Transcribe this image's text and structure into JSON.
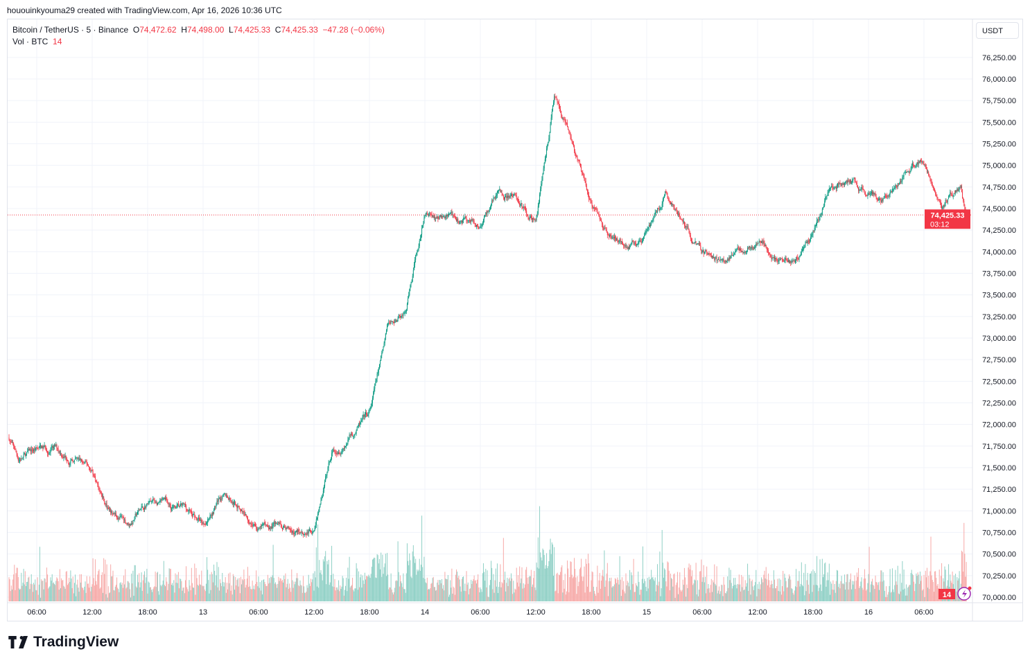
{
  "credit": "hououinkyouma29 created with TradingView.com, Apr 16, 2026 10:36 UTC",
  "legend": {
    "symbol": "Bitcoin / TetherUS · 5 · Binance",
    "o_label": "O",
    "o": "74,472.62",
    "h_label": "H",
    "h": "74,498.00",
    "l_label": "L",
    "l": "74,425.33",
    "c_label": "C",
    "c": "74,425.33",
    "change": "−47.28 (−0.06%)",
    "vol_label": "Vol · BTC",
    "vol": "14"
  },
  "currency_button": "USDT",
  "last_price_label": "74,425.33",
  "countdown": "03:12",
  "volume_badge": "14",
  "brand": "TradingView",
  "colors": {
    "up": "#089981",
    "down": "#f23645",
    "up_volume": "#8fd0c5",
    "down_volume": "#f7a9a7"
  },
  "chart_data": {
    "type": "candlestick",
    "interval": "5m",
    "ylim": [
      70000,
      76250
    ],
    "grid": true,
    "y_ticks": [
      "70,000.00",
      "70,250.00",
      "70,500.00",
      "70,750.00",
      "71,000.00",
      "71,250.00",
      "71,500.00",
      "71,750.00",
      "72,000.00",
      "72,250.00",
      "72,500.00",
      "72,750.00",
      "73,000.00",
      "73,250.00",
      "73,500.00",
      "73,750.00",
      "74,000.00",
      "74,250.00",
      "74,500.00",
      "74,750.00",
      "75,000.00",
      "75,250.00",
      "75,500.00",
      "75,750.00",
      "76,000.00",
      "76,250.00"
    ],
    "x_ticks": [
      {
        "t": "2026-04-12 06:00",
        "label": "06:00"
      },
      {
        "t": "2026-04-12 12:00",
        "label": "12:00"
      },
      {
        "t": "2026-04-12 18:00",
        "label": "18:00"
      },
      {
        "t": "2026-04-13 00:00",
        "label": "13"
      },
      {
        "t": "2026-04-13 06:00",
        "label": "06:00"
      },
      {
        "t": "2026-04-13 12:00",
        "label": "12:00"
      },
      {
        "t": "2026-04-13 18:00",
        "label": "18:00"
      },
      {
        "t": "2026-04-14 00:00",
        "label": "14"
      },
      {
        "t": "2026-04-14 06:00",
        "label": "06:00"
      },
      {
        "t": "2026-04-14 12:00",
        "label": "12:00"
      },
      {
        "t": "2026-04-14 18:00",
        "label": "18:00"
      },
      {
        "t": "2026-04-15 00:00",
        "label": "15"
      },
      {
        "t": "2026-04-15 06:00",
        "label": "06:00"
      },
      {
        "t": "2026-04-15 12:00",
        "label": "12:00"
      },
      {
        "t": "2026-04-15 18:00",
        "label": "18:00"
      },
      {
        "t": "2026-04-16 00:00",
        "label": "16"
      },
      {
        "t": "2026-04-16 06:00",
        "label": "06:00"
      }
    ],
    "xlim": [
      "2026-04-12 02:55",
      "2026-04-16 11:10"
    ],
    "approx_close": [
      [
        "2026-04-12 03:00",
        71850
      ],
      [
        "2026-04-12 04:00",
        71600
      ],
      [
        "2026-04-12 06:00",
        71700
      ],
      [
        "2026-04-12 08:00",
        71700
      ],
      [
        "2026-04-12 10:00",
        71600
      ],
      [
        "2026-04-12 12:00",
        71450
      ],
      [
        "2026-04-12 14:00",
        70950
      ],
      [
        "2026-04-12 16:00",
        70850
      ],
      [
        "2026-04-12 18:00",
        71100
      ],
      [
        "2026-04-12 20:00",
        71050
      ],
      [
        "2026-04-12 22:00",
        71000
      ],
      [
        "2026-04-13 00:00",
        70850
      ],
      [
        "2026-04-13 02:00",
        71200
      ],
      [
        "2026-04-13 04:00",
        71050
      ],
      [
        "2026-04-13 06:00",
        70800
      ],
      [
        "2026-04-13 08:00",
        70850
      ],
      [
        "2026-04-13 10:00",
        70750
      ],
      [
        "2026-04-13 12:00",
        70800
      ],
      [
        "2026-04-13 14:00",
        71700
      ],
      [
        "2026-04-13 16:00",
        71900
      ],
      [
        "2026-04-13 18:00",
        72100
      ],
      [
        "2026-04-13 20:00",
        73100
      ],
      [
        "2026-04-13 22:00",
        73300
      ],
      [
        "2026-04-14 00:00",
        74400
      ],
      [
        "2026-04-14 02:00",
        74400
      ],
      [
        "2026-04-14 04:00",
        74350
      ],
      [
        "2026-04-14 06:00",
        74300
      ],
      [
        "2026-04-14 08:00",
        74700
      ],
      [
        "2026-04-14 10:00",
        74600
      ],
      [
        "2026-04-14 12:00",
        74350
      ],
      [
        "2026-04-14 14:00",
        75800
      ],
      [
        "2026-04-14 16:00",
        75200
      ],
      [
        "2026-04-14 18:00",
        74550
      ],
      [
        "2026-04-14 20:00",
        74200
      ],
      [
        "2026-04-14 22:00",
        74100
      ],
      [
        "2026-04-15 00:00",
        74200
      ],
      [
        "2026-04-15 02:00",
        74650
      ],
      [
        "2026-04-15 04:00",
        74300
      ],
      [
        "2026-04-15 06:00",
        74000
      ],
      [
        "2026-04-15 08:00",
        73850
      ],
      [
        "2026-04-15 10:00",
        74000
      ],
      [
        "2026-04-15 12:00",
        74100
      ],
      [
        "2026-04-15 14:00",
        73950
      ],
      [
        "2026-04-15 16:00",
        73900
      ],
      [
        "2026-04-15 18:00",
        74250
      ],
      [
        "2026-04-15 20:00",
        74800
      ],
      [
        "2026-04-15 22:00",
        74800
      ],
      [
        "2026-04-16 00:00",
        74650
      ],
      [
        "2026-04-16 02:00",
        74600
      ],
      [
        "2026-04-16 04:00",
        74950
      ],
      [
        "2026-04-16 06:00",
        75050
      ],
      [
        "2026-04-16 08:00",
        74600
      ],
      [
        "2026-04-16 10:00",
        74700
      ],
      [
        "2026-04-16 10:35",
        74425.33
      ]
    ],
    "high": 76020,
    "low": 70520,
    "last_price": 74425.33
  }
}
